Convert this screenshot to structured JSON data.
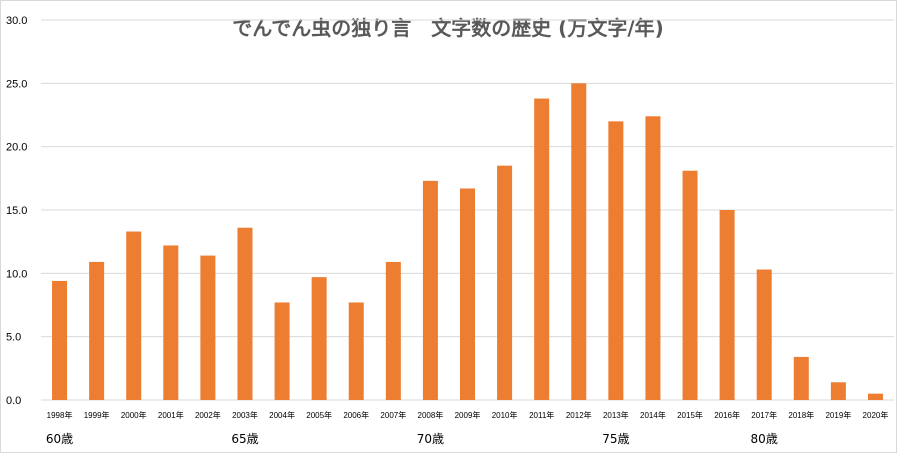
{
  "chart_data": {
    "type": "bar",
    "title": "でんでん虫の独り言　文字数の歴史 (万文字/年)",
    "categories": [
      "1998年",
      "1999年",
      "2000年",
      "2001年",
      "2002年",
      "2003年",
      "2004年",
      "2005年",
      "2006年",
      "2007年",
      "2008年",
      "2009年",
      "2010年",
      "2011年",
      "2012年",
      "2013年",
      "2014年",
      "2015年",
      "2016年",
      "2017年",
      "2018年",
      "2019年",
      "2020年"
    ],
    "values": [
      9.4,
      10.9,
      13.3,
      12.2,
      11.4,
      13.6,
      7.7,
      9.7,
      7.7,
      10.9,
      17.3,
      16.7,
      18.5,
      23.8,
      25.0,
      22.0,
      22.4,
      18.1,
      15.0,
      10.3,
      3.4,
      1.4,
      0.5
    ],
    "ylim": [
      0,
      30
    ],
    "yticks": [
      "0.0",
      "5.0",
      "10.0",
      "15.0",
      "20.0",
      "25.0",
      "30.0"
    ],
    "bar_color": "#ED7D31",
    "grid": true,
    "age_labels": [
      {
        "text": "60歳",
        "category_index": 0
      },
      {
        "text": "65歳",
        "category_index": 5
      },
      {
        "text": "70歳",
        "category_index": 10
      },
      {
        "text": "75歳",
        "category_index": 15
      },
      {
        "text": "80歳",
        "category_index": 19
      }
    ]
  }
}
